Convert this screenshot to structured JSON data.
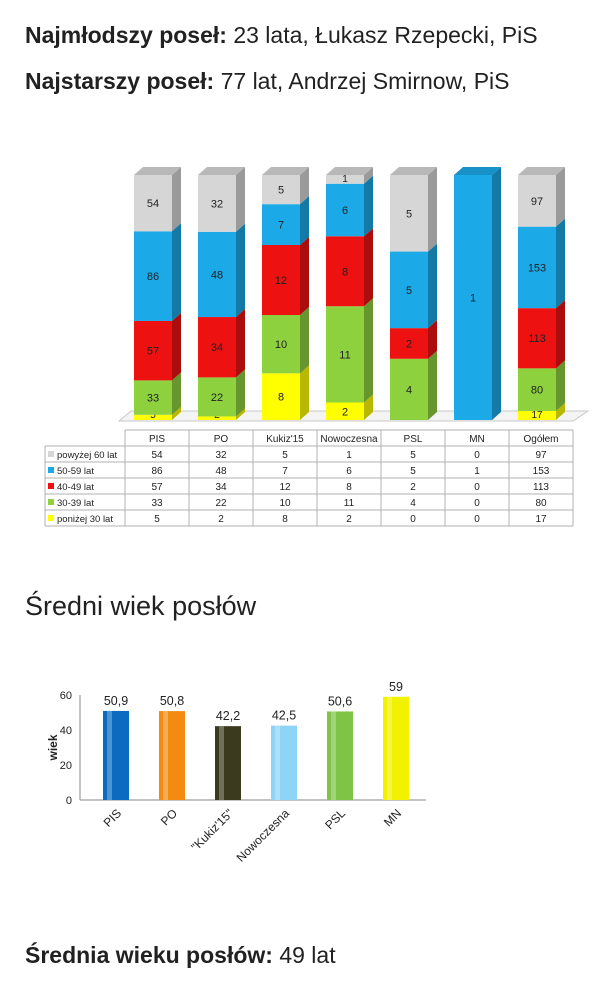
{
  "facts": {
    "youngest_label": "Najmłodszy poseł:",
    "youngest_value": " 23 lata, Łukasz Rzepecki, PiS",
    "oldest_label": "Najstarszy poseł:",
    "oldest_value": " 77 lat, Andrzej Smirnow, PiS",
    "average_label": "Średnia wieku posłów:",
    "average_value": " 49 lat"
  },
  "section_heading": "Średni wiek posłów",
  "chart_data": [
    {
      "type": "bar",
      "stacked": true,
      "normalized": true,
      "categories": [
        "PIS",
        "PO",
        "Kukiz'15",
        "Nowoczesna",
        "PSL",
        "MN",
        "Ogółem"
      ],
      "series": [
        {
          "name": "poniżej 30 lat",
          "color": "#FFFF00",
          "values": [
            5,
            2,
            8,
            2,
            0,
            0,
            17
          ]
        },
        {
          "name": "30-39 lat",
          "color": "#8DD13F",
          "values": [
            33,
            22,
            10,
            11,
            4,
            0,
            80
          ]
        },
        {
          "name": "40-49 lat",
          "color": "#EE1111",
          "values": [
            57,
            34,
            12,
            8,
            2,
            0,
            113
          ]
        },
        {
          "name": "50-59 lat",
          "color": "#1BA9E8",
          "values": [
            86,
            48,
            7,
            6,
            5,
            1,
            153
          ]
        },
        {
          "name": "powyżej 60 lat",
          "color": "#D6D6D6",
          "values": [
            54,
            32,
            5,
            1,
            5,
            0,
            97
          ]
        }
      ],
      "legend_placement": "table below chart",
      "ylim": [
        0,
        1
      ]
    },
    {
      "type": "bar",
      "categories": [
        "PIS",
        "PO",
        "\"Kukiz'15\"",
        "Nowoczesna",
        "PSL",
        "MN"
      ],
      "values": [
        50.9,
        50.8,
        42.2,
        42.5,
        50.6,
        59
      ],
      "value_labels": [
        "50,9",
        "50,8",
        "42,2",
        "42,5",
        "50,6",
        "59"
      ],
      "colors": [
        "#0A6BC0",
        "#F58A12",
        "#3B3A1E",
        "#8ED4F6",
        "#7DC447",
        "#F2F200"
      ],
      "ylabel": "wiek",
      "ylim": [
        0,
        60
      ],
      "yticks": [
        0,
        20,
        40,
        60
      ],
      "grid": false
    }
  ]
}
